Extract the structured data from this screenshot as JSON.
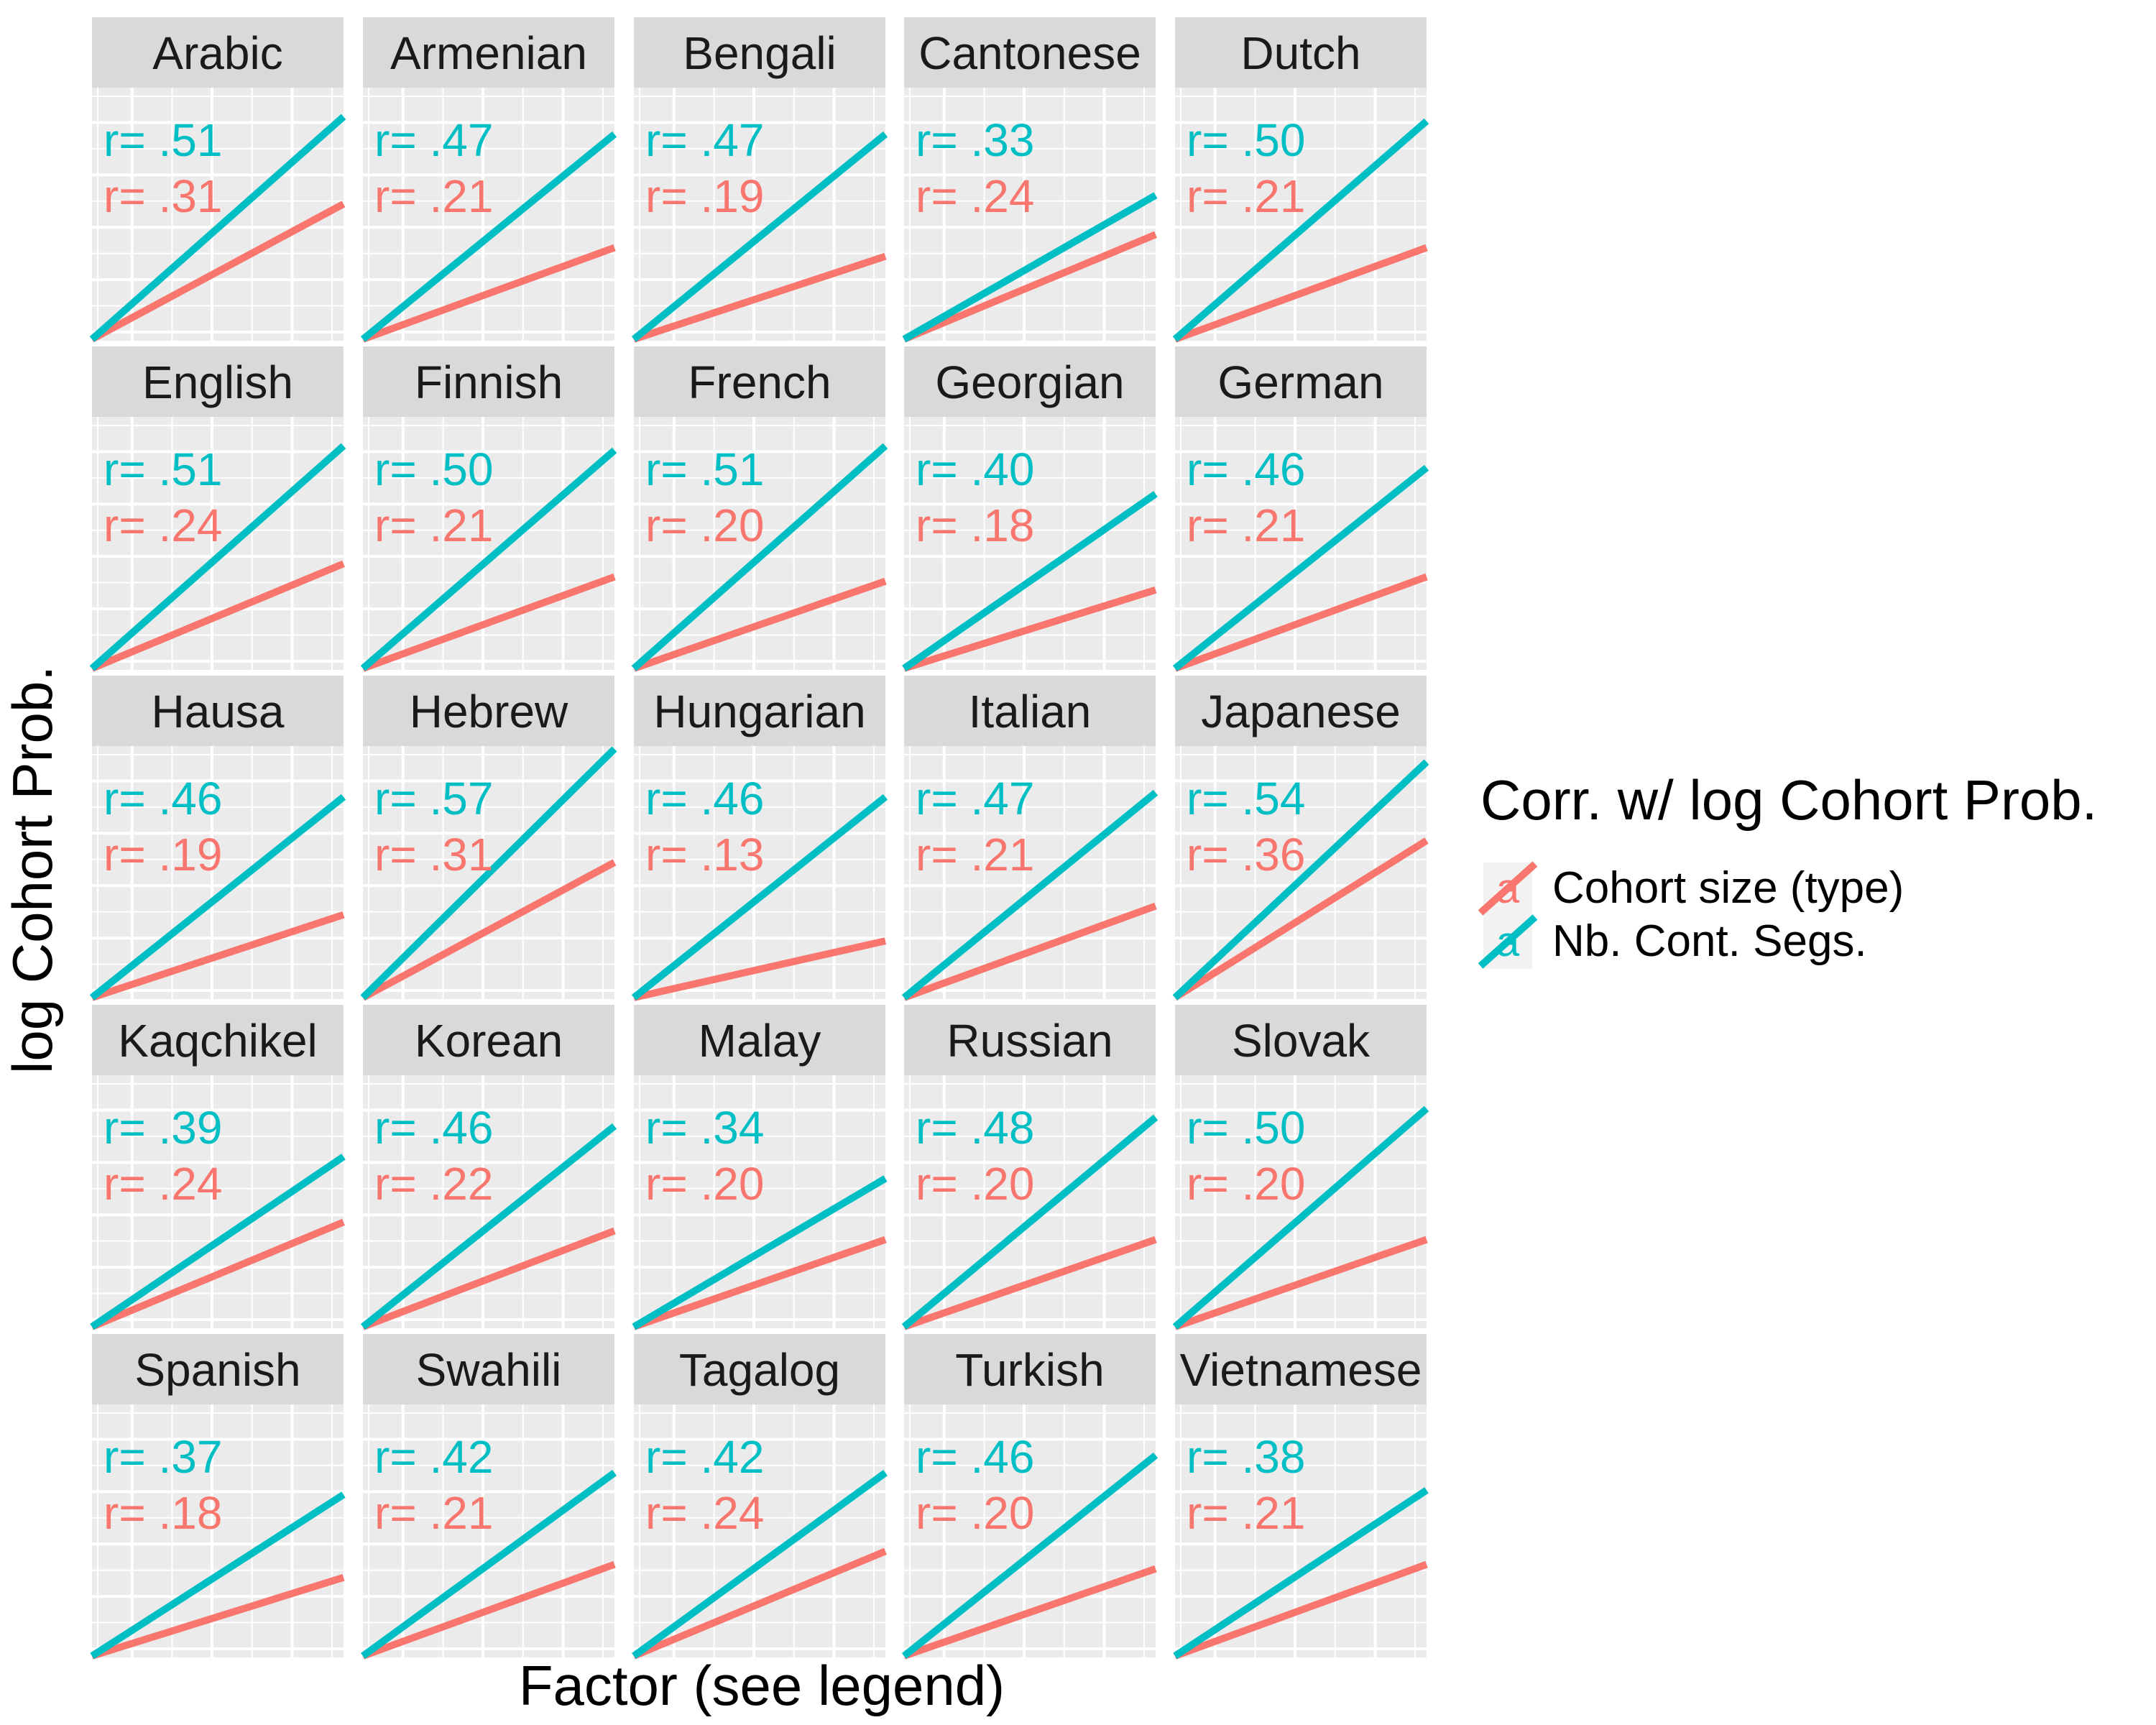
{
  "chart_data": {
    "type": "line",
    "xlabel": "Factor (see legend)",
    "ylabel": "log Cohort Prob.",
    "legend": {
      "title": "Corr. w/ log Cohort Prob.",
      "position": "right",
      "key_glyph": "a",
      "entries": [
        {
          "name": "Cohort size (type)",
          "color": "#F8766D"
        },
        {
          "name": "Nb. Cont. Segs.",
          "color": "#00BFC4"
        }
      ]
    },
    "grid": true,
    "axis_ticks_shown": false,
    "facets": [
      {
        "name": "Arabic",
        "cyan_label": "r= .51",
        "red_label": "r= .31",
        "cyan_r": 0.51,
        "red_r": 0.31
      },
      {
        "name": "Armenian",
        "cyan_label": "r= .47",
        "red_label": "r= .21",
        "cyan_r": 0.47,
        "red_r": 0.21
      },
      {
        "name": "Bengali",
        "cyan_label": "r= .47",
        "red_label": "r= .19",
        "cyan_r": 0.47,
        "red_r": 0.19
      },
      {
        "name": "Cantonese",
        "cyan_label": "r= .33",
        "red_label": "r= .24",
        "cyan_r": 0.33,
        "red_r": 0.24
      },
      {
        "name": "Dutch",
        "cyan_label": "r= .50",
        "red_label": "r= .21",
        "cyan_r": 0.5,
        "red_r": 0.21
      },
      {
        "name": "English",
        "cyan_label": "r= .51",
        "red_label": "r= .24",
        "cyan_r": 0.51,
        "red_r": 0.24
      },
      {
        "name": "Finnish",
        "cyan_label": "r= .50",
        "red_label": "r= .21",
        "cyan_r": 0.5,
        "red_r": 0.21
      },
      {
        "name": "French",
        "cyan_label": "r= .51",
        "red_label": "r= .20",
        "cyan_r": 0.51,
        "red_r": 0.2
      },
      {
        "name": "Georgian",
        "cyan_label": "r= .40",
        "red_label": "r= .18",
        "cyan_r": 0.4,
        "red_r": 0.18
      },
      {
        "name": "German",
        "cyan_label": "r= .46",
        "red_label": "r= .21",
        "cyan_r": 0.46,
        "red_r": 0.21
      },
      {
        "name": "Hausa",
        "cyan_label": "r= .46",
        "red_label": "r= .19",
        "cyan_r": 0.46,
        "red_r": 0.19
      },
      {
        "name": "Hebrew",
        "cyan_label": "r= .57",
        "red_label": "r= .31",
        "cyan_r": 0.57,
        "red_r": 0.31
      },
      {
        "name": "Hungarian",
        "cyan_label": "r= .46",
        "red_label": "r= .13",
        "cyan_r": 0.46,
        "red_r": 0.13
      },
      {
        "name": "Italian",
        "cyan_label": "r= .47",
        "red_label": "r= .21",
        "cyan_r": 0.47,
        "red_r": 0.21
      },
      {
        "name": "Japanese",
        "cyan_label": "r= .54",
        "red_label": "r= .36",
        "cyan_r": 0.54,
        "red_r": 0.36
      },
      {
        "name": "Kaqchikel",
        "cyan_label": "r= .39",
        "red_label": "r= .24",
        "cyan_r": 0.39,
        "red_r": 0.24
      },
      {
        "name": "Korean",
        "cyan_label": "r= .46",
        "red_label": "r= .22",
        "cyan_r": 0.46,
        "red_r": 0.22
      },
      {
        "name": "Malay",
        "cyan_label": "r= .34",
        "red_label": "r= .20",
        "cyan_r": 0.34,
        "red_r": 0.2
      },
      {
        "name": "Russian",
        "cyan_label": "r= .48",
        "red_label": "r= .20",
        "cyan_r": 0.48,
        "red_r": 0.2
      },
      {
        "name": "Slovak",
        "cyan_label": "r= .50",
        "red_label": "r= .20",
        "cyan_r": 0.5,
        "red_r": 0.2
      },
      {
        "name": "Spanish",
        "cyan_label": "r= .37",
        "red_label": "r= .18",
        "cyan_r": 0.37,
        "red_r": 0.18
      },
      {
        "name": "Swahili",
        "cyan_label": "r= .42",
        "red_label": "r= .21",
        "cyan_r": 0.42,
        "red_r": 0.21
      },
      {
        "name": "Tagalog",
        "cyan_label": "r= .42",
        "red_label": "r= .24",
        "cyan_r": 0.42,
        "red_r": 0.24
      },
      {
        "name": "Turkish",
        "cyan_label": "r= .46",
        "red_label": "r= .20",
        "cyan_r": 0.46,
        "red_r": 0.2
      },
      {
        "name": "Vietnamese",
        "cyan_label": "r= .38",
        "red_label": "r= .21",
        "cyan_r": 0.38,
        "red_r": 0.21
      }
    ]
  }
}
